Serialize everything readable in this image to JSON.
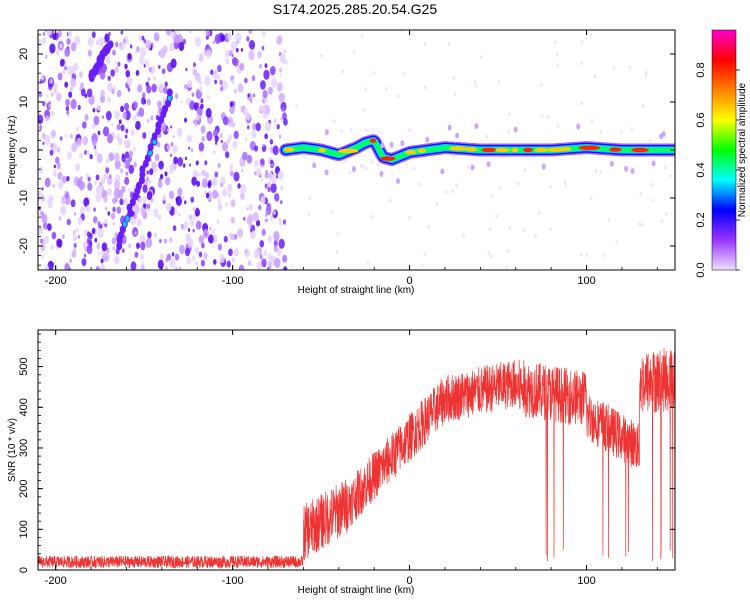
{
  "title": "S174.2025.285.20.54.G25",
  "chart_data": [
    {
      "type": "heatmap",
      "name": "spectrogram",
      "xlabel": "Height of straight line (km)",
      "ylabel": "Frequency (Hz)",
      "xlim": [
        -210,
        150
      ],
      "ylim": [
        -25,
        25
      ],
      "xticks": [
        -200,
        -100,
        0,
        100
      ],
      "yticks": [
        -20,
        -10,
        0,
        10,
        20
      ],
      "noise_region_x": [
        -210,
        -70
      ],
      "signal_track": {
        "x": [
          -70,
          -60,
          -50,
          -40,
          -30,
          -25,
          -20,
          -15,
          -10,
          0,
          20,
          40,
          60,
          80,
          100,
          120,
          150
        ],
        "freq": [
          0,
          0.5,
          0,
          -1,
          0.5,
          1.5,
          2,
          -1.5,
          -2,
          -0.5,
          0.5,
          0,
          0,
          0,
          0.5,
          0,
          0
        ]
      },
      "streaks": [
        {
          "from": [
            -165,
            -20
          ],
          "to": [
            -135,
            12
          ]
        },
        {
          "from": [
            -180,
            15
          ],
          "to": [
            -170,
            22
          ]
        }
      ],
      "colorbar": {
        "label": "Normalized spectral amplitude",
        "ticks": [
          0.0,
          0.2,
          0.4,
          0.6,
          0.8
        ],
        "range": [
          0,
          0.96
        ],
        "colors": [
          "#f0e0ff",
          "#9933ff",
          "#0000ff",
          "#00ffff",
          "#00ff00",
          "#ffff00",
          "#ff8000",
          "#ff0000",
          "#ff00cc"
        ]
      }
    },
    {
      "type": "line",
      "name": "snr",
      "xlabel": "Height of straight line (km)",
      "ylabel": "SNR (10 * v/v)",
      "xlim": [
        -210,
        150
      ],
      "ylim": [
        0,
        590
      ],
      "xticks": [
        -200,
        -100,
        0,
        100
      ],
      "yticks": [
        0,
        100,
        200,
        300,
        400,
        500
      ],
      "color": "#ee3333",
      "segments": [
        {
          "x": [
            -210,
            -60
          ],
          "mean_start": 20,
          "mean_end": 20,
          "noise": 15,
          "note": "noise floor"
        },
        {
          "x": [
            -60,
            -35
          ],
          "mean_start": 90,
          "mean_end": 160,
          "noise": 70
        },
        {
          "x": [
            -35,
            20
          ],
          "mean_start": 160,
          "mean_end": 420,
          "noise": 60
        },
        {
          "x": [
            20,
            60
          ],
          "mean_start": 420,
          "mean_end": 460,
          "noise": 60
        },
        {
          "x": [
            60,
            100
          ],
          "mean_start": 450,
          "mean_end": 420,
          "noise": 70,
          "dropouts": true
        },
        {
          "x": [
            100,
            130
          ],
          "mean_start": 380,
          "mean_end": 300,
          "noise": 60,
          "dropouts": true
        },
        {
          "x": [
            130,
            150
          ],
          "mean_start": 460,
          "mean_end": 470,
          "noise": 80,
          "dropouts": true
        }
      ]
    }
  ]
}
